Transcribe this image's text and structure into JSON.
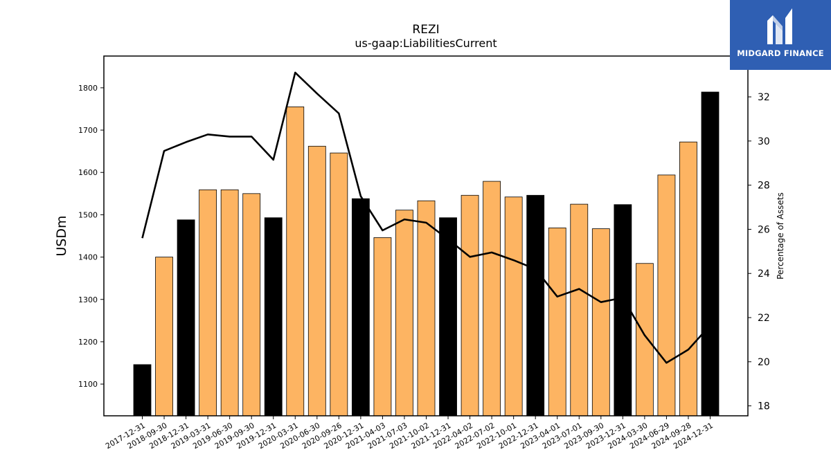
{
  "chart_data": {
    "type": "bar",
    "title": "REZI",
    "subtitle": "us-gaap:LiabilitiesCurrent",
    "ylabel": "USDm",
    "y2label": "Percentage of Assets",
    "ylim": [
      1025,
      1875
    ],
    "y2lim": [
      17.55,
      33.85
    ],
    "yticks": [
      1100,
      1200,
      1300,
      1400,
      1500,
      1600,
      1700,
      1800
    ],
    "y2ticks": [
      18,
      20,
      22,
      24,
      26,
      28,
      30,
      32
    ],
    "categories": [
      "2017-12-31",
      "2018-09-30",
      "2018-12-31",
      "2019-03-31",
      "2019-06-30",
      "2019-09-30",
      "2019-12-31",
      "2020-03-31",
      "2020-06-30",
      "2020-09-26",
      "2020-12-31",
      "2021-04-03",
      "2021-07-03",
      "2021-10-02",
      "2021-12-31",
      "2022-04-02",
      "2022-07-02",
      "2022-10-01",
      "2022-12-31",
      "2023-04-01",
      "2023-07-01",
      "2023-09-30",
      "2023-12-31",
      "2024-03-30",
      "2024-06-29",
      "2024-09-28",
      "2024-12-31"
    ],
    "series": [
      {
        "type": "bar",
        "values": [
          1146,
          1400,
          1488,
          1559,
          1559,
          1550,
          1493,
          1755,
          1662,
          1646,
          1538,
          1446,
          1511,
          1533,
          1493,
          1546,
          1579,
          1542,
          1546,
          1469,
          1525,
          1467,
          1524,
          1385,
          1594,
          1672,
          1790
        ],
        "annual": [
          true,
          false,
          true,
          false,
          false,
          false,
          true,
          false,
          false,
          false,
          true,
          false,
          false,
          false,
          true,
          false,
          false,
          false,
          true,
          false,
          false,
          false,
          true,
          false,
          false,
          false,
          true
        ]
      },
      {
        "type": "line",
        "axis": "right",
        "values": [
          25.6,
          29.55,
          29.95,
          30.3,
          30.2,
          30.2,
          29.15,
          33.1,
          32.15,
          31.25,
          27.5,
          25.95,
          26.45,
          26.3,
          25.55,
          24.75,
          24.95,
          24.6,
          24.2,
          22.95,
          23.3,
          22.7,
          22.9,
          21.2,
          19.95,
          20.55,
          21.65
        ]
      }
    ],
    "colors": {
      "annual_bar": "#000000",
      "quarter_bar": "#fdb462",
      "line": "#000000"
    },
    "grid": false,
    "legend": "none"
  },
  "logo": {
    "text": "MIDGARD FINANCE",
    "icon": "midgard-logo-icon"
  }
}
